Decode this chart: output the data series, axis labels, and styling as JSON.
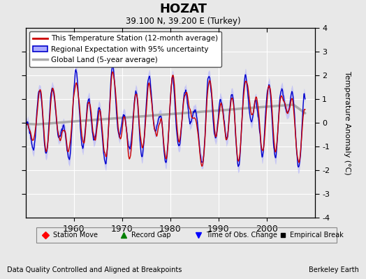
{
  "title": "HOZAT",
  "subtitle": "39.100 N, 39.200 E (Turkey)",
  "ylabel": "Temperature Anomaly (°C)",
  "xlabel_left": "Data Quality Controlled and Aligned at Breakpoints",
  "xlabel_right": "Berkeley Earth",
  "ylim": [
    -4,
    4
  ],
  "xlim": [
    1950,
    2010
  ],
  "xticks": [
    1960,
    1970,
    1980,
    1990,
    2000
  ],
  "yticks": [
    -3,
    -2,
    -1,
    0,
    1,
    2,
    3
  ],
  "bg_color": "#e8e8e8",
  "plot_bg_color": "#e8e8e8",
  "grid_color": "#ffffff",
  "uncertainty_color": "#aaaaff",
  "regional_color": "#0000cc",
  "station_color": "#cc0000",
  "global_color": "#aaaaaa",
  "seed": 17
}
